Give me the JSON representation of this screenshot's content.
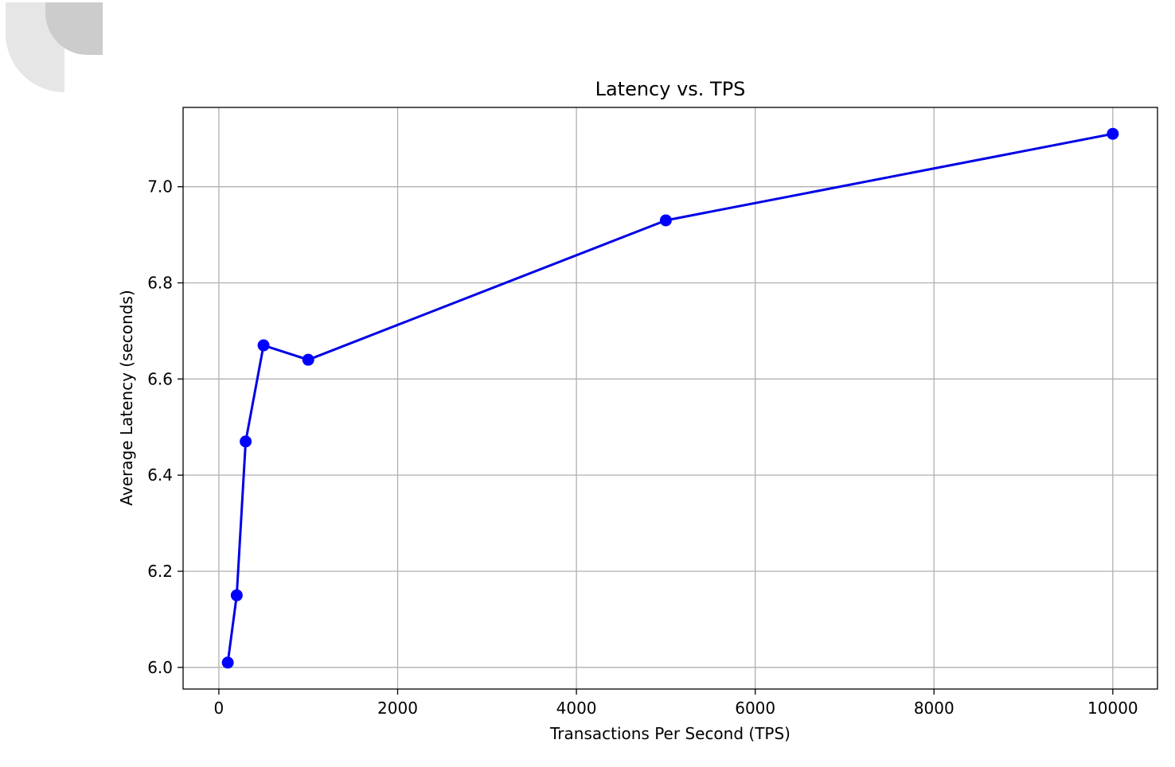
{
  "colors": {
    "line": "#0000e6",
    "marker": "#0000ff",
    "grid": "#b0b0b0",
    "axes": "#000000",
    "corner_light": "#e6e6e6",
    "corner_dark": "#cccccc"
  },
  "chart_data": {
    "type": "line",
    "title": "Latency vs. TPS",
    "xlabel": "Transactions Per Second (TPS)",
    "ylabel": "Average Latency (seconds)",
    "xlim": [
      -400,
      10500
    ],
    "ylim": [
      5.955,
      7.165
    ],
    "grid": true,
    "marker": "circle",
    "x_ticks": [
      0,
      2000,
      4000,
      6000,
      8000,
      10000
    ],
    "x_tick_labels": [
      "0",
      "2000",
      "4000",
      "6000",
      "8000",
      "10000"
    ],
    "y_ticks": [
      6.0,
      6.2,
      6.4,
      6.6,
      6.8,
      7.0
    ],
    "y_tick_labels": [
      "6.0",
      "6.2",
      "6.4",
      "6.6",
      "6.8",
      "7.0"
    ],
    "series": [
      {
        "x": [
          100,
          200,
          300,
          500,
          1000,
          5000,
          10000
        ],
        "y": [
          6.01,
          6.15,
          6.47,
          6.67,
          6.64,
          6.93,
          7.11
        ]
      }
    ]
  }
}
